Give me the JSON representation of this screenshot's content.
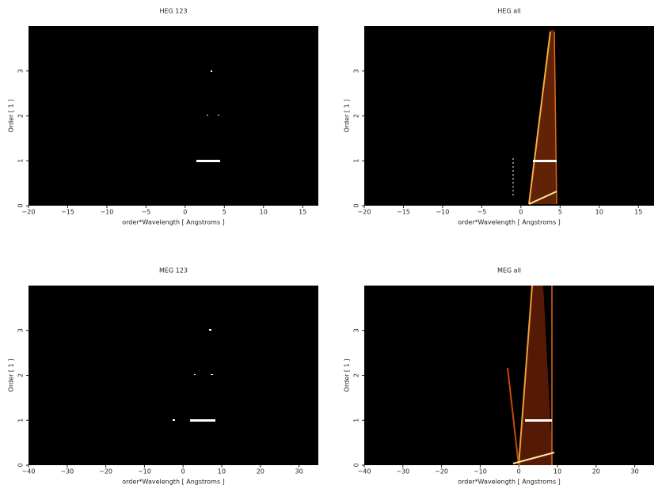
{
  "chart_data": [
    {
      "type": "image",
      "title": "HEG 123",
      "xlabel": "order*Wavelength [ Angstroms ]",
      "ylabel": "Order [ 1 ]",
      "xlim": [
        -20,
        17
      ],
      "ylim": [
        0,
        4
      ],
      "xticks": [
        {
          "value": -20,
          "label": "−20"
        },
        {
          "value": -15,
          "label": "−15"
        },
        {
          "value": -10,
          "label": "−10"
        },
        {
          "value": -5,
          "label": "−5"
        },
        0,
        5,
        10,
        15
      ],
      "yticks": [
        0,
        1,
        2,
        3
      ]
    },
    {
      "type": "image",
      "title": "HEG all",
      "xlabel": "order*Wavelength [ Angstroms ]",
      "ylabel": "Order [ 1 ]",
      "xlim": [
        -20,
        17
      ],
      "ylim": [
        0,
        4
      ],
      "xticks": [
        {
          "value": -20,
          "label": "−20"
        },
        {
          "value": -15,
          "label": "−15"
        },
        {
          "value": -10,
          "label": "−10"
        },
        {
          "value": -5,
          "label": "−5"
        },
        0,
        5,
        10,
        15
      ],
      "yticks": [
        0,
        1,
        2,
        3
      ]
    },
    {
      "type": "image",
      "title": "MEG 123",
      "xlabel": "order*Wavelength [ Angstroms ]",
      "ylabel": "Order [ 1 ]",
      "xlim": [
        -40,
        35
      ],
      "ylim": [
        0,
        4
      ],
      "xticks": [
        {
          "value": -40,
          "label": "−40"
        },
        {
          "value": -30,
          "label": "−30"
        },
        {
          "value": -20,
          "label": "−20"
        },
        {
          "value": -10,
          "label": "−10"
        },
        0,
        10,
        20,
        30
      ],
      "yticks": [
        0,
        1,
        2,
        3
      ]
    },
    {
      "type": "image",
      "title": "MEG all",
      "xlabel": "order*Wavelength [ Angstroms ]",
      "ylabel": "Order [ 1 ]",
      "xlim": [
        -40,
        35
      ],
      "ylim": [
        0,
        4
      ],
      "xticks": [
        {
          "value": -40,
          "label": "−40"
        },
        {
          "value": -30,
          "label": "−30"
        },
        {
          "value": -20,
          "label": "−20"
        },
        {
          "value": -10,
          "label": "−10"
        },
        0,
        10,
        20,
        30
      ],
      "yticks": [
        0,
        1,
        2,
        3
      ]
    }
  ]
}
